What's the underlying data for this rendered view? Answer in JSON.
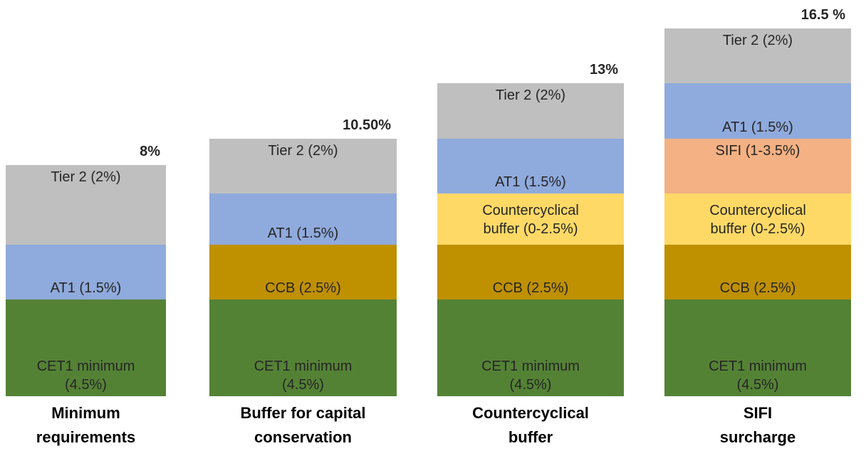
{
  "columns": [
    {
      "total": "8%",
      "label": [
        "Minimum",
        "requirements"
      ],
      "segments": [
        {
          "lines": [
            "CET1 minimum",
            "(4.5%)"
          ],
          "color": "#548235"
        },
        {
          "lines": [
            "AT1 (1.5%)"
          ],
          "color": "#8faadc"
        },
        {
          "lines": [
            "Tier 2 (2%)"
          ],
          "color": "#bfbfbf"
        }
      ]
    },
    {
      "total": "10.50%",
      "label": [
        "Buffer for capital",
        "conservation"
      ],
      "segments": [
        {
          "lines": [
            "CET1 minimum",
            "(4.5%)"
          ],
          "color": "#548235"
        },
        {
          "lines": [
            "CCB (2.5%)"
          ],
          "color": "#bf9000"
        },
        {
          "lines": [
            "AT1 (1.5%)"
          ],
          "color": "#8faadc"
        },
        {
          "lines": [
            "Tier 2 (2%)"
          ],
          "color": "#bfbfbf"
        }
      ]
    },
    {
      "total": "13%",
      "label": [
        "Countercyclical",
        "buffer"
      ],
      "segments": [
        {
          "lines": [
            "CET1 minimum",
            "(4.5%)"
          ],
          "color": "#548235"
        },
        {
          "lines": [
            "CCB (2.5%)"
          ],
          "color": "#bf9000"
        },
        {
          "lines": [
            "Countercyclical",
            "buffer (0-2.5%)"
          ],
          "color": "#ffd966"
        },
        {
          "lines": [
            "AT1 (1.5%)"
          ],
          "color": "#8faadc"
        },
        {
          "lines": [
            "Tier 2 (2%)"
          ],
          "color": "#bfbfbf"
        }
      ]
    },
    {
      "total": "16.5 %",
      "label": [
        "SIFI",
        "surcharge"
      ],
      "segments": [
        {
          "lines": [
            "CET1 minimum",
            "(4.5%)"
          ],
          "color": "#548235"
        },
        {
          "lines": [
            "CCB (2.5%)"
          ],
          "color": "#bf9000"
        },
        {
          "lines": [
            "Countercyclical",
            "buffer (0-2.5%)"
          ],
          "color": "#ffd966"
        },
        {
          "lines": [
            "SIFI (1-3.5%)"
          ],
          "color": "#f4b183"
        },
        {
          "lines": [
            "AT1 (1.5%)"
          ],
          "color": "#8faadc"
        },
        {
          "lines": [
            "Tier 2 (2%)"
          ],
          "color": "#bfbfbf"
        }
      ]
    }
  ]
}
